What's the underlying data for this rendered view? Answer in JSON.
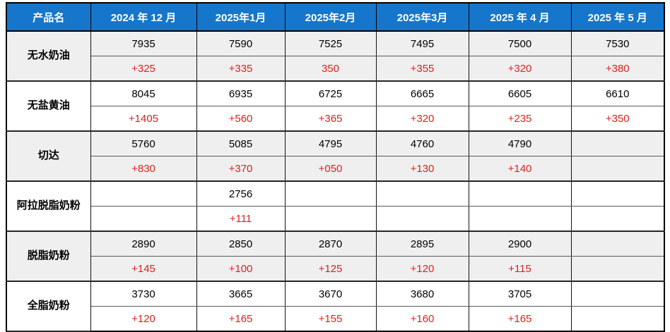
{
  "table": {
    "columns": [
      "产品名",
      "2024 年 12 月",
      "2025年1月",
      "2025年2月",
      "2025年3月",
      "2025 年 4 月",
      "2025 年 5 月"
    ],
    "products": [
      {
        "name": "无水奶油",
        "shaded": true,
        "prices": [
          "7935",
          "7590",
          "7525",
          "7495",
          "7500",
          "7530"
        ],
        "changes": [
          "+325",
          "+335",
          "350",
          "+355",
          "+320",
          "+380"
        ]
      },
      {
        "name": "无盐黄油",
        "shaded": false,
        "prices": [
          "8045",
          "6935",
          "6725",
          "6665",
          "6605",
          "6610"
        ],
        "changes": [
          "+1405",
          "+560",
          "+365",
          "+320",
          "+235",
          "+350"
        ]
      },
      {
        "name": "切达",
        "shaded": true,
        "prices": [
          "5760",
          "5085",
          "4795",
          "4760",
          "4790",
          ""
        ],
        "changes": [
          "+830",
          "+370",
          "+050",
          "+130",
          "+140",
          ""
        ]
      },
      {
        "name": "阿拉脱脂奶粉",
        "shaded": false,
        "prices": [
          "",
          "2756",
          "",
          "",
          "",
          ""
        ],
        "changes": [
          "",
          "+111",
          "",
          "",
          "",
          ""
        ]
      },
      {
        "name": "脱脂奶粉",
        "shaded": true,
        "prices": [
          "2890",
          "2850",
          "2870",
          "2895",
          "2900",
          ""
        ],
        "changes": [
          "+145",
          "+100",
          "+125",
          "+120",
          "+115",
          ""
        ]
      },
      {
        "name": "全脂奶粉",
        "shaded": false,
        "prices": [
          "3730",
          "3665",
          "3670",
          "3680",
          "3705",
          ""
        ],
        "changes": [
          "+120",
          "+165",
          "+155",
          "+160",
          "+165",
          ""
        ]
      }
    ],
    "colors": {
      "header_bg": "#1576CB",
      "header_text": "#FFFFFF",
      "price_text": "#000000",
      "change_text": "#E01F1F",
      "shaded_group_bg": "#EFEFEF",
      "plain_group_bg": "#FFFFFF",
      "grid_line": "#000000"
    }
  },
  "chart_data": {
    "type": "table",
    "title": "",
    "columns": [
      "产品名",
      "2024 年 12 月",
      "2025年1月",
      "2025年2月",
      "2025年3月",
      "2025 年 4 月",
      "2025 年 5 月"
    ],
    "rows": [
      {
        "product": "无水奶油",
        "prices": [
          7935,
          7590,
          7525,
          7495,
          7500,
          7530
        ],
        "changes": [
          "+325",
          "+335",
          "350",
          "+355",
          "+320",
          "+380"
        ]
      },
      {
        "product": "无盐黄油",
        "prices": [
          8045,
          6935,
          6725,
          6665,
          6605,
          6610
        ],
        "changes": [
          "+1405",
          "+560",
          "+365",
          "+320",
          "+235",
          "+350"
        ]
      },
      {
        "product": "切达",
        "prices": [
          5760,
          5085,
          4795,
          4760,
          4790,
          null
        ],
        "changes": [
          "+830",
          "+370",
          "+050",
          "+130",
          "+140",
          null
        ]
      },
      {
        "product": "阿拉脱脂奶粉",
        "prices": [
          null,
          2756,
          null,
          null,
          null,
          null
        ],
        "changes": [
          null,
          "+111",
          null,
          null,
          null,
          null
        ]
      },
      {
        "product": "脱脂奶粉",
        "prices": [
          2890,
          2850,
          2870,
          2895,
          2900,
          null
        ],
        "changes": [
          "+145",
          "+100",
          "+125",
          "+120",
          "+115",
          null
        ]
      },
      {
        "product": "全脂奶粉",
        "prices": [
          3730,
          3665,
          3670,
          3680,
          3705,
          null
        ],
        "changes": [
          "+120",
          "+165",
          "+155",
          "+160",
          "+165",
          null
        ]
      }
    ],
    "layout_hints": {
      "price_row_color": "black",
      "change_row_color": "red",
      "group_shading": "alternating gray/white per product",
      "header": "blue background, white bold text"
    }
  }
}
